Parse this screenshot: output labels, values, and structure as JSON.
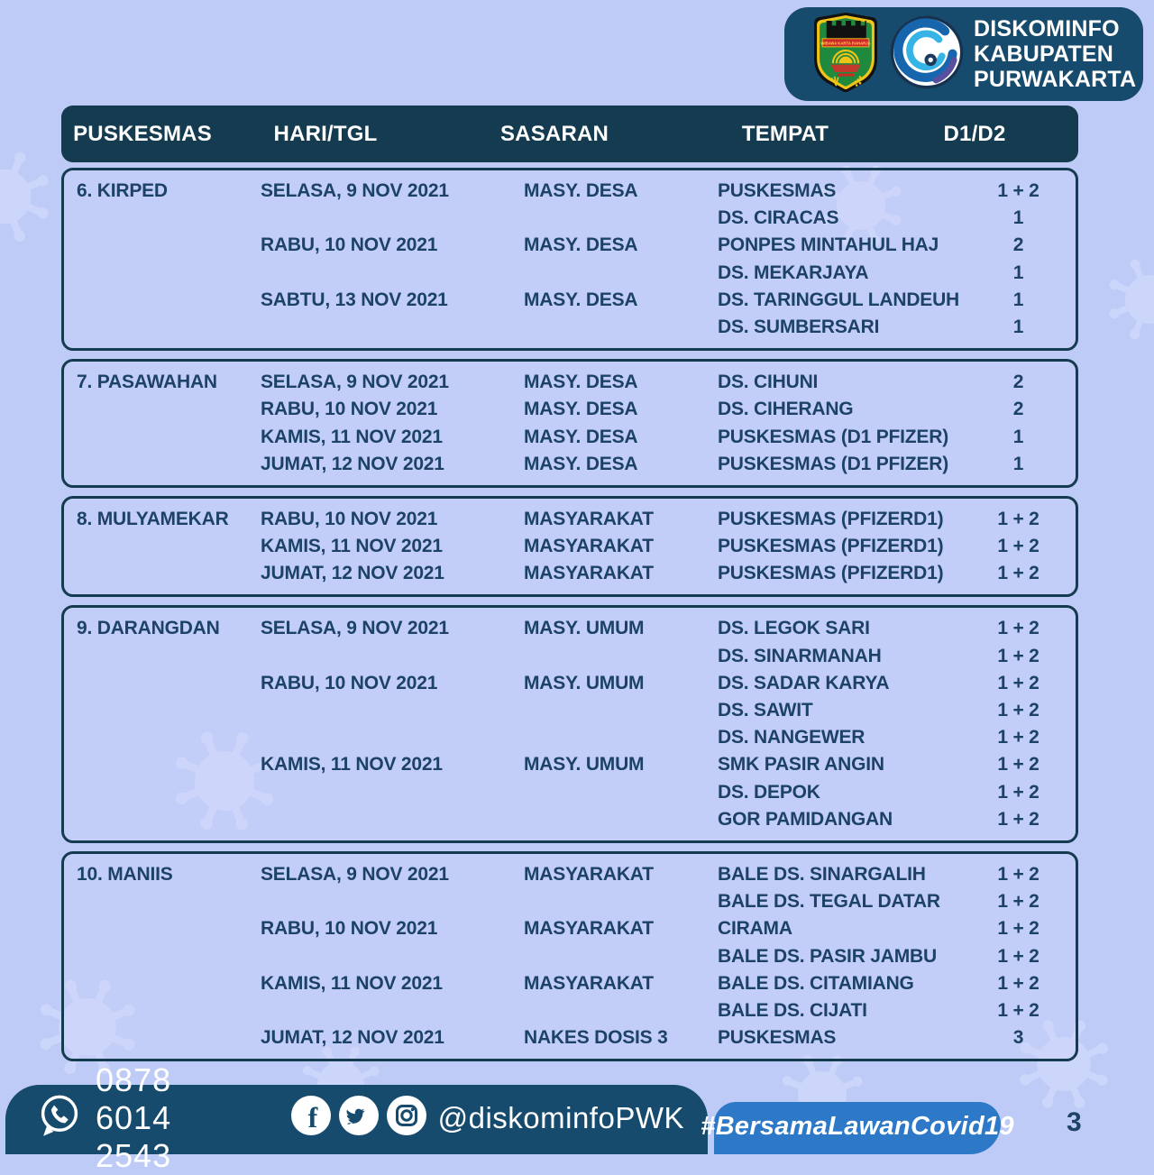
{
  "brand": {
    "line1": "DISKOMINFO",
    "line2": "KABUPATEN",
    "line3": "PURWAKARTA",
    "crest_icon": "purwakarta-crest",
    "wave_icon": "kominfo-wave-logo",
    "crest_motto": "WIBAWA KARTA RAHARJA"
  },
  "table": {
    "headers": [
      "PUSKESMAS",
      "HARI/TGL",
      "SASARAN",
      "TEMPAT",
      "D1/D2"
    ],
    "cards": [
      {
        "name": "6. KIRPED",
        "rows": [
          [
            "SELASA, 9 NOV 2021",
            "MASY. DESA",
            "PUSKESMAS",
            "1 + 2"
          ],
          [
            "",
            "",
            "DS. CIRACAS",
            "1"
          ],
          [
            "RABU, 10 NOV 2021",
            "MASY. DESA",
            "PONPES MINTAHUL HAJ",
            "2"
          ],
          [
            "",
            "",
            "DS. MEKARJAYA",
            "1"
          ],
          [
            "SABTU, 13 NOV 2021",
            "MASY. DESA",
            "DS. TARINGGUL LANDEUH",
            "1"
          ],
          [
            "",
            "",
            "DS. SUMBERSARI",
            "1"
          ]
        ]
      },
      {
        "name": "7. PASAWAHAN",
        "rows": [
          [
            "SELASA, 9 NOV 2021",
            "MASY. DESA",
            "DS. CIHUNI",
            "2"
          ],
          [
            "RABU, 10 NOV 2021",
            "MASY. DESA",
            "DS. CIHERANG",
            "2"
          ],
          [
            "KAMIS, 11 NOV 2021",
            "MASY. DESA",
            "PUSKESMAS (D1 PFIZER)",
            "1"
          ],
          [
            "JUMAT, 12 NOV 2021",
            "MASY. DESA",
            "PUSKESMAS (D1 PFIZER)",
            "1"
          ]
        ]
      },
      {
        "name": "8. MULYAMEKAR",
        "rows": [
          [
            "RABU, 10 NOV 2021",
            "MASYARAKAT",
            "PUSKESMAS (PFIZERD1)",
            "1 + 2"
          ],
          [
            "KAMIS, 11 NOV 2021",
            "MASYARAKAT",
            "PUSKESMAS (PFIZERD1)",
            "1 + 2"
          ],
          [
            "JUMAT, 12 NOV 2021",
            "MASYARAKAT",
            "PUSKESMAS (PFIZERD1)",
            "1 + 2"
          ]
        ]
      },
      {
        "name": "9. DARANGDAN",
        "rows": [
          [
            "SELASA, 9 NOV 2021",
            "MASY. UMUM",
            "DS. LEGOK SARI",
            "1 + 2"
          ],
          [
            "",
            "",
            "DS. SINARMANAH",
            "1 + 2"
          ],
          [
            "RABU, 10 NOV 2021",
            "MASY. UMUM",
            "DS. SADAR KARYA",
            "1 + 2"
          ],
          [
            "",
            "",
            "DS. SAWIT",
            "1 + 2"
          ],
          [
            "",
            "",
            "DS. NANGEWER",
            "1 + 2"
          ],
          [
            "KAMIS, 11 NOV 2021",
            "MASY. UMUM",
            "SMK PASIR ANGIN",
            "1 + 2"
          ],
          [
            "",
            "",
            "DS. DEPOK",
            "1 + 2"
          ],
          [
            "",
            "",
            "GOR PAMIDANGAN",
            "1 + 2"
          ]
        ]
      },
      {
        "name": "10. MANIIS",
        "rows": [
          [
            "SELASA, 9 NOV 2021",
            "MASYARAKAT",
            "BALE DS. SINARGALIH",
            "1 + 2"
          ],
          [
            "",
            "",
            "BALE DS. TEGAL DATAR",
            "1 + 2"
          ],
          [
            "RABU, 10 NOV 2021",
            "MASYARAKAT",
            "CIRAMA",
            "1 + 2"
          ],
          [
            "",
            "",
            "BALE DS. PASIR JAMBU",
            "1 + 2"
          ],
          [
            "KAMIS, 11 NOV 2021",
            "MASYARAKAT",
            "BALE DS. CITAMIANG",
            "1 + 2"
          ],
          [
            "",
            "",
            "BALE DS. CIJATI",
            "1 + 2"
          ],
          [
            "JUMAT, 12 NOV 2021",
            "NAKES DOSIS 3",
            "PUSKESMAS",
            "3"
          ]
        ]
      }
    ]
  },
  "footer": {
    "whatsapp_icon": "whatsapp-icon",
    "whatsapp_number": "0878 6014 2543",
    "social_icons": [
      "facebook-icon",
      "twitter-icon",
      "instagram-icon"
    ],
    "social_handle": "@diskominfoPWK",
    "hashtag": "#BersamaLawanCovid19",
    "page_number": "3"
  },
  "colors": {
    "page_bg": "#bfcbf7",
    "table_header_navy": "#143b4f",
    "panel_navy": "#174b6d",
    "hashtag_blue": "#2e79c7",
    "text_navy": "#1c4265",
    "watermark": "#ccd6fa"
  },
  "watermark_icon": "virus-icon"
}
